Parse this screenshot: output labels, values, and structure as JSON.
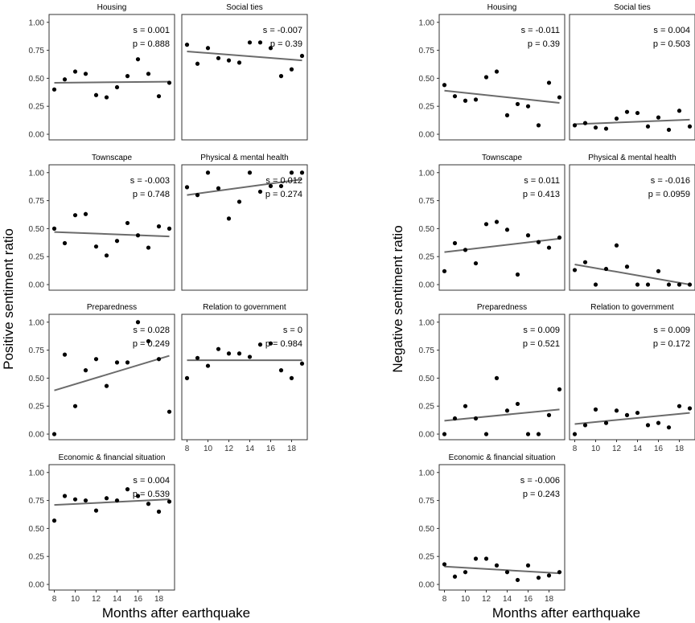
{
  "figure": {
    "y_label_left": "Positive sentiment ratio",
    "y_label_right": "Negative sentiment ratio",
    "x_label": "Months after earthquake"
  },
  "chart_data": [
    {
      "id": "pos-housing",
      "type": "scatter",
      "title": "Housing",
      "x": [
        8,
        9,
        10,
        11,
        12,
        13,
        14,
        15,
        16,
        17,
        18,
        19
      ],
      "y": [
        0.4,
        0.49,
        0.56,
        0.54,
        0.35,
        0.33,
        0.42,
        0.52,
        0.67,
        0.54,
        0.34,
        0.46
      ],
      "fit": [
        0.46,
        0.47
      ],
      "s": "s = 0.001",
      "p": "p = 0.888",
      "xlim": [
        7.5,
        19.5
      ],
      "ylim": [
        -0.05,
        1.07
      ],
      "yticks": [
        "0.00",
        "0.25",
        "0.50",
        "0.75",
        "1.00"
      ],
      "xticks": [
        "8",
        "10",
        "12",
        "14",
        "16",
        "18"
      ]
    },
    {
      "id": "pos-social",
      "type": "scatter",
      "title": "Social ties",
      "x": [
        8,
        9,
        10,
        11,
        12,
        13,
        14,
        15,
        16,
        17,
        18,
        19
      ],
      "y": [
        0.8,
        0.63,
        0.77,
        0.68,
        0.66,
        0.64,
        0.82,
        0.82,
        0.77,
        0.52,
        0.58,
        0.7
      ],
      "fit": [
        0.74,
        0.66
      ],
      "s": "s = -0.007",
      "p": "p = 0.39",
      "xlim": [
        7.5,
        19.5
      ],
      "ylim": [
        -0.05,
        1.07
      ],
      "yticks": [
        "0.00",
        "0.25",
        "0.50",
        "0.75",
        "1.00"
      ],
      "xticks": [
        "8",
        "10",
        "12",
        "14",
        "16",
        "18"
      ]
    },
    {
      "id": "pos-townscape",
      "type": "scatter",
      "title": "Townscape",
      "x": [
        8,
        9,
        10,
        11,
        12,
        13,
        14,
        15,
        16,
        17,
        18,
        19
      ],
      "y": [
        0.5,
        0.37,
        0.62,
        0.63,
        0.34,
        0.26,
        0.39,
        0.55,
        0.44,
        0.33,
        0.52,
        0.5
      ],
      "fit": [
        0.47,
        0.43
      ],
      "s": "s = -0.003",
      "p": "p = 0.748",
      "xlim": [
        7.5,
        19.5
      ],
      "ylim": [
        -0.05,
        1.07
      ],
      "yticks": [
        "0.00",
        "0.25",
        "0.50",
        "0.75",
        "1.00"
      ],
      "xticks": [
        "8",
        "10",
        "12",
        "14",
        "16",
        "18"
      ]
    },
    {
      "id": "pos-health",
      "type": "scatter",
      "title": "Physical & mental health",
      "x": [
        8,
        9,
        10,
        11,
        12,
        13,
        14,
        15,
        16,
        17,
        18,
        19
      ],
      "y": [
        0.87,
        0.8,
        1.0,
        0.86,
        0.59,
        0.74,
        1.0,
        0.83,
        0.88,
        0.88,
        1.0,
        1.0
      ],
      "fit": [
        0.8,
        0.94
      ],
      "s": "s = 0.012",
      "p": "p = 0.274",
      "xlim": [
        7.5,
        19.5
      ],
      "ylim": [
        -0.05,
        1.07
      ],
      "yticks": [
        "0.00",
        "0.25",
        "0.50",
        "0.75",
        "1.00"
      ],
      "xticks": [
        "8",
        "10",
        "12",
        "14",
        "16",
        "18"
      ]
    },
    {
      "id": "pos-preparedness",
      "type": "scatter",
      "title": "Preparedness",
      "x": [
        8,
        9,
        10,
        11,
        12,
        13,
        14,
        15,
        16,
        17,
        18,
        19
      ],
      "y": [
        0.0,
        0.71,
        0.25,
        0.57,
        0.67,
        0.43,
        0.64,
        0.64,
        1.0,
        0.83,
        0.67,
        0.2
      ],
      "fit": [
        0.39,
        0.7
      ],
      "s": "s = 0.028",
      "p": "p = 0.249",
      "xlim": [
        7.5,
        19.5
      ],
      "ylim": [
        -0.05,
        1.07
      ],
      "yticks": [
        "0.00",
        "0.25",
        "0.50",
        "0.75",
        "1.00"
      ],
      "xticks": [
        "8",
        "10",
        "12",
        "14",
        "16",
        "18"
      ]
    },
    {
      "id": "pos-government",
      "type": "scatter",
      "title": "Relation to government",
      "x": [
        8,
        9,
        10,
        11,
        12,
        13,
        14,
        15,
        16,
        17,
        18,
        19
      ],
      "y": [
        0.5,
        0.68,
        0.61,
        0.76,
        0.72,
        0.72,
        0.69,
        0.8,
        0.81,
        0.57,
        0.5,
        0.63
      ],
      "fit": [
        0.66,
        0.66
      ],
      "s": "s = 0",
      "p": "p = 0.984",
      "xlim": [
        7.5,
        19.5
      ],
      "ylim": [
        -0.05,
        1.07
      ],
      "yticks": [
        "0.00",
        "0.25",
        "0.50",
        "0.75",
        "1.00"
      ],
      "xticks": [
        "8",
        "10",
        "12",
        "14",
        "16",
        "18"
      ]
    },
    {
      "id": "pos-economic",
      "type": "scatter",
      "title": "Economic & financial situation",
      "x": [
        8,
        9,
        10,
        11,
        12,
        13,
        14,
        15,
        16,
        17,
        18,
        19
      ],
      "y": [
        0.57,
        0.79,
        0.76,
        0.75,
        0.66,
        0.77,
        0.75,
        0.85,
        0.79,
        0.72,
        0.65,
        0.74
      ],
      "fit": [
        0.71,
        0.76
      ],
      "s": "s = 0.004",
      "p": "p = 0.539",
      "xlim": [
        7.5,
        19.5
      ],
      "ylim": [
        -0.05,
        1.07
      ],
      "yticks": [
        "0.00",
        "0.25",
        "0.50",
        "0.75",
        "1.00"
      ],
      "xticks": [
        "8",
        "10",
        "12",
        "14",
        "16",
        "18"
      ]
    },
    {
      "id": "neg-housing",
      "type": "scatter",
      "title": "Housing",
      "x": [
        8,
        9,
        10,
        11,
        12,
        13,
        14,
        15,
        16,
        17,
        18,
        19
      ],
      "y": [
        0.44,
        0.34,
        0.3,
        0.31,
        0.51,
        0.56,
        0.17,
        0.27,
        0.25,
        0.08,
        0.46,
        0.33
      ],
      "fit": [
        0.39,
        0.28
      ],
      "s": "s = -0.011",
      "p": "p = 0.39",
      "xlim": [
        7.5,
        19.5
      ],
      "ylim": [
        -0.05,
        1.07
      ],
      "yticks": [
        "0.00",
        "0.25",
        "0.50",
        "0.75",
        "1.00"
      ],
      "xticks": [
        "8",
        "10",
        "12",
        "14",
        "16",
        "18"
      ]
    },
    {
      "id": "neg-social",
      "type": "scatter",
      "title": "Social ties",
      "x": [
        8,
        9,
        10,
        11,
        12,
        13,
        14,
        15,
        16,
        17,
        18,
        19
      ],
      "y": [
        0.08,
        0.1,
        0.06,
        0.05,
        0.14,
        0.2,
        0.19,
        0.07,
        0.15,
        0.04,
        0.21,
        0.07
      ],
      "fit": [
        0.09,
        0.13
      ],
      "s": "s = 0.004",
      "p": "p = 0.503",
      "xlim": [
        7.5,
        19.5
      ],
      "ylim": [
        -0.05,
        1.07
      ],
      "yticks": [
        "0.00",
        "0.25",
        "0.50",
        "0.75",
        "1.00"
      ],
      "xticks": [
        "8",
        "10",
        "12",
        "14",
        "16",
        "18"
      ]
    },
    {
      "id": "neg-townscape",
      "type": "scatter",
      "title": "Townscape",
      "x": [
        8,
        9,
        10,
        11,
        12,
        13,
        14,
        15,
        16,
        17,
        18,
        19
      ],
      "y": [
        0.12,
        0.37,
        0.31,
        0.19,
        0.54,
        0.56,
        0.49,
        0.09,
        0.44,
        0.38,
        0.33,
        0.42
      ],
      "fit": [
        0.29,
        0.41
      ],
      "s": "s = 0.011",
      "p": "p = 0.413",
      "xlim": [
        7.5,
        19.5
      ],
      "ylim": [
        -0.05,
        1.07
      ],
      "yticks": [
        "0.00",
        "0.25",
        "0.50",
        "0.75",
        "1.00"
      ],
      "xticks": [
        "8",
        "10",
        "12",
        "14",
        "16",
        "18"
      ]
    },
    {
      "id": "neg-health",
      "type": "scatter",
      "title": "Physical & mental health",
      "x": [
        8,
        9,
        10,
        11,
        12,
        13,
        14,
        15,
        16,
        17,
        18,
        19
      ],
      "y": [
        0.13,
        0.2,
        0.0,
        0.14,
        0.35,
        0.16,
        0.0,
        0.0,
        0.12,
        0.0,
        0.0,
        0.0
      ],
      "fit": [
        0.18,
        0.0
      ],
      "s": "s = -0.016",
      "p": "p = 0.0959",
      "xlim": [
        7.5,
        19.5
      ],
      "ylim": [
        -0.05,
        1.07
      ],
      "yticks": [
        "0.00",
        "0.25",
        "0.50",
        "0.75",
        "1.00"
      ],
      "xticks": [
        "8",
        "10",
        "12",
        "14",
        "16",
        "18"
      ]
    },
    {
      "id": "neg-preparedness",
      "type": "scatter",
      "title": "Preparedness",
      "x": [
        8,
        9,
        10,
        11,
        12,
        13,
        14,
        15,
        16,
        17,
        18,
        19
      ],
      "y": [
        0.0,
        0.14,
        0.25,
        0.14,
        0.0,
        0.5,
        0.21,
        0.27,
        0.0,
        0.0,
        0.17,
        0.4
      ],
      "fit": [
        0.12,
        0.22
      ],
      "s": "s = 0.009",
      "p": "p = 0.521",
      "xlim": [
        7.5,
        19.5
      ],
      "ylim": [
        -0.05,
        1.07
      ],
      "yticks": [
        "0.00",
        "0.25",
        "0.50",
        "0.75",
        "1.00"
      ],
      "xticks": [
        "8",
        "10",
        "12",
        "14",
        "16",
        "18"
      ]
    },
    {
      "id": "neg-government",
      "type": "scatter",
      "title": "Relation to government",
      "x": [
        8,
        9,
        10,
        11,
        12,
        13,
        14,
        15,
        16,
        17,
        18,
        19
      ],
      "y": [
        0.0,
        0.08,
        0.22,
        0.1,
        0.21,
        0.17,
        0.19,
        0.08,
        0.1,
        0.06,
        0.25,
        0.23
      ],
      "fit": [
        0.09,
        0.19
      ],
      "s": "s = 0.009",
      "p": "p = 0.172",
      "xlim": [
        7.5,
        19.5
      ],
      "ylim": [
        -0.05,
        1.07
      ],
      "yticks": [
        "0.00",
        "0.25",
        "0.50",
        "0.75",
        "1.00"
      ],
      "xticks": [
        "8",
        "10",
        "12",
        "14",
        "16",
        "18"
      ]
    },
    {
      "id": "neg-economic",
      "type": "scatter",
      "title": "Economic & financial situation",
      "x": [
        8,
        9,
        10,
        11,
        12,
        13,
        14,
        15,
        16,
        17,
        18,
        19
      ],
      "y": [
        0.18,
        0.07,
        0.11,
        0.23,
        0.23,
        0.17,
        0.11,
        0.04,
        0.17,
        0.06,
        0.08,
        0.11
      ],
      "fit": [
        0.16,
        0.1
      ],
      "s": "s = -0.006",
      "p": "p = 0.243",
      "xlim": [
        7.5,
        19.5
      ],
      "ylim": [
        -0.05,
        1.07
      ],
      "yticks": [
        "0.00",
        "0.25",
        "0.50",
        "0.75",
        "1.00"
      ],
      "xticks": [
        "8",
        "10",
        "12",
        "14",
        "16",
        "18"
      ]
    }
  ],
  "style": {
    "point_color": "#000000",
    "fit_color": "#6b6b6b",
    "axis_color": "#333333"
  }
}
